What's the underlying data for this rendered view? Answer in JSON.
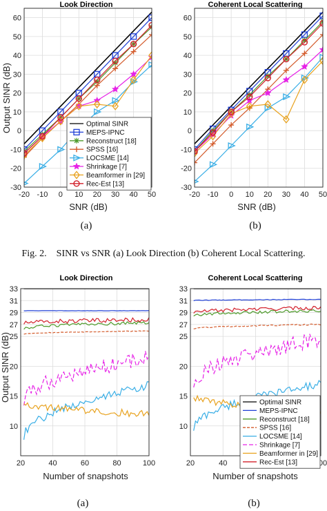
{
  "caption": "Fig. 2.    SINR vs SNR (a) Look Direction (b) Coherent Local Scattering.",
  "top_sublabels": [
    "(a)",
    "(b)"
  ],
  "bottom_sublabels": [
    "(a)",
    "(b)"
  ],
  "chart_data": [
    {
      "type": "line",
      "title": "Look Direction",
      "xlabel": "SNR (dB)",
      "ylabel": "Output SINR (dB)",
      "x": [
        -20,
        -10,
        0,
        10,
        20,
        30,
        40,
        50
      ],
      "xlim": [
        -20,
        50
      ],
      "ylim": [
        -30,
        65
      ],
      "xticks": [
        -20,
        -10,
        0,
        10,
        20,
        30,
        40,
        50
      ],
      "yticks": [
        -30,
        -20,
        -10,
        0,
        10,
        20,
        30,
        40,
        50,
        60
      ],
      "grid": true,
      "legend": "bottom-right",
      "series": [
        {
          "name": "Optimal SINR",
          "color": "#000000",
          "marker": "none",
          "values": [
            -7,
            3,
            13,
            23,
            33,
            43,
            53,
            63
          ]
        },
        {
          "name": "MEPS-IPNC",
          "color": "#1f3fd6",
          "marker": "square",
          "values": [
            -10,
            0,
            10,
            20,
            30,
            40,
            50,
            60
          ]
        },
        {
          "name": "Reconstruct [18]",
          "color": "#4d9a2a",
          "marker": "star",
          "values": [
            -11,
            -2,
            7,
            17,
            26,
            36,
            46,
            55
          ]
        },
        {
          "name": "SPSS [16]",
          "color": "#d35a2a",
          "marker": "plus",
          "values": [
            -14,
            -4,
            5,
            14,
            24,
            33,
            42,
            51
          ]
        },
        {
          "name": "LOCSME [14]",
          "color": "#39aee6",
          "marker": "triangle-right",
          "values": [
            -28,
            -19,
            -10,
            1,
            10,
            16,
            26,
            35
          ]
        },
        {
          "name": "Shrinkage [7]",
          "color": "#e621e6",
          "marker": "pentagram",
          "values": [
            -12,
            -3,
            5,
            13,
            16,
            22,
            30,
            39
          ]
        },
        {
          "name": "Beamformer in [29]",
          "color": "#e8a21e",
          "marker": "diamond",
          "values": [
            -13,
            -4,
            5,
            13,
            14,
            13,
            27,
            40
          ]
        },
        {
          "name": "Rec-Est [13]",
          "color": "#d21f2a",
          "marker": "circle",
          "values": [
            -12,
            -3,
            7,
            17,
            27,
            37,
            46,
            56
          ]
        }
      ]
    },
    {
      "type": "line",
      "title": "Coherent Local Scattering",
      "xlabel": "SNR (dB)",
      "ylabel": "",
      "x": [
        -20,
        -10,
        0,
        10,
        20,
        30,
        40,
        50
      ],
      "xlim": [
        -20,
        50
      ],
      "ylim": [
        -30,
        65
      ],
      "xticks": [
        -20,
        -10,
        0,
        10,
        20,
        30,
        40,
        50
      ],
      "yticks": [
        -30,
        -20,
        -10,
        0,
        10,
        20,
        30,
        40,
        50,
        60
      ],
      "grid": true,
      "series": [
        {
          "color": "#000000",
          "marker": "none",
          "values": [
            -7,
            3,
            13,
            23,
            33,
            43,
            53,
            63
          ]
        },
        {
          "color": "#1f3fd6",
          "marker": "square",
          "values": [
            -10,
            1,
            11,
            21,
            31,
            41,
            51,
            61
          ]
        },
        {
          "color": "#4d9a2a",
          "marker": "star",
          "values": [
            -11,
            0,
            10,
            19,
            29,
            38,
            48,
            58
          ]
        },
        {
          "color": "#d35a2a",
          "marker": "plus",
          "values": [
            -17,
            -7,
            3,
            12,
            22,
            32,
            41,
            51
          ]
        },
        {
          "color": "#39aee6",
          "marker": "triangle-right",
          "values": [
            -27,
            -18,
            -8,
            2,
            12,
            18,
            28,
            39
          ]
        },
        {
          "color": "#e621e6",
          "marker": "pentagram",
          "values": [
            -11,
            -2,
            8,
            16,
            20,
            27,
            34,
            43
          ]
        },
        {
          "color": "#e8a21e",
          "marker": "diamond",
          "values": [
            -12,
            -3,
            9,
            13,
            14,
            6,
            27,
            37
          ]
        },
        {
          "color": "#d21f2a",
          "marker": "circle",
          "values": [
            -11,
            -1,
            10,
            18,
            28,
            38,
            47,
            57
          ]
        }
      ]
    },
    {
      "type": "line",
      "title": "Look Direction",
      "xlabel": "Number of snapshots",
      "ylabel": "Output SINR (dB)",
      "x_range": [
        22,
        100
      ],
      "xlim": [
        20,
        100
      ],
      "ylim": [
        5,
        33
      ],
      "xticks": [
        20,
        40,
        60,
        80,
        100
      ],
      "yticks": [
        10,
        15,
        20,
        25,
        27,
        29,
        31,
        33
      ],
      "grid": true,
      "series": [
        {
          "color": "#000000",
          "dash": "none",
          "start": 33,
          "end": 33,
          "noise": 0
        },
        {
          "color": "#1f3fd6",
          "dash": "none",
          "start": 29.3,
          "end": 29.3,
          "noise": 0.02
        },
        {
          "color": "#4d9a2a",
          "dash": "none",
          "start": 26.3,
          "end": 27.3,
          "noise": 0.25
        },
        {
          "color": "#d35a2a",
          "dash": "4 2",
          "start": 25.4,
          "end": 25.9,
          "noise": 0.05
        },
        {
          "color": "#39aee6",
          "dash": "none",
          "start": 8.0,
          "end": 16.8,
          "noise": 0.7
        },
        {
          "color": "#e621e6",
          "dash": "6 3",
          "start": 14.0,
          "end": 21.5,
          "noise": 1.3
        },
        {
          "color": "#e8a21e",
          "dash": "none",
          "start": 14.0,
          "end": 12.0,
          "noise": 0.6
        },
        {
          "color": "#d21f2a",
          "dash": "none",
          "start": 27.2,
          "end": 27.8,
          "noise": 0.35
        }
      ]
    },
    {
      "type": "line",
      "title": "Coherent Local Scattering",
      "xlabel": "Number of snapshots",
      "ylabel": "",
      "x_range": [
        22,
        100
      ],
      "xlim": [
        20,
        100
      ],
      "ylim": [
        5,
        33
      ],
      "xticks": [
        20,
        40,
        60,
        80,
        100
      ],
      "yticks": [
        10,
        15,
        20,
        25,
        27,
        29,
        31,
        33
      ],
      "grid": true,
      "legend": "bottom-right",
      "series": [
        {
          "name": "Optimal SINR",
          "color": "#000000",
          "dash": "none",
          "start": 33,
          "end": 33,
          "noise": 0
        },
        {
          "name": "MEPS-IPNC",
          "color": "#1f3fd6",
          "dash": "none",
          "start": 31.0,
          "end": 31.2,
          "noise": 0.05
        },
        {
          "name": "Reconstruct [18]",
          "color": "#4d9a2a",
          "dash": "none",
          "start": 28.5,
          "end": 29.3,
          "noise": 0.25
        },
        {
          "name": "SPSS [16]",
          "color": "#d35a2a",
          "dash": "4 2",
          "start": 26.3,
          "end": 27.0,
          "noise": 0.1
        },
        {
          "name": "LOCSME [14]",
          "color": "#39aee6",
          "dash": "none",
          "start": 9.5,
          "end": 17.0,
          "noise": 0.7
        },
        {
          "name": "Shrinkage [7]",
          "color": "#e621e6",
          "dash": "6 3",
          "start": 17.0,
          "end": 24.5,
          "noise": 1.3
        },
        {
          "name": "Beamformer in [29]",
          "color": "#e8a21e",
          "dash": "none",
          "start": 15.0,
          "end": 12.5,
          "noise": 0.6
        },
        {
          "name": "Rec-Est [13]",
          "color": "#d21f2a",
          "dash": "none",
          "start": 29.0,
          "end": 29.8,
          "noise": 0.3
        }
      ]
    }
  ]
}
